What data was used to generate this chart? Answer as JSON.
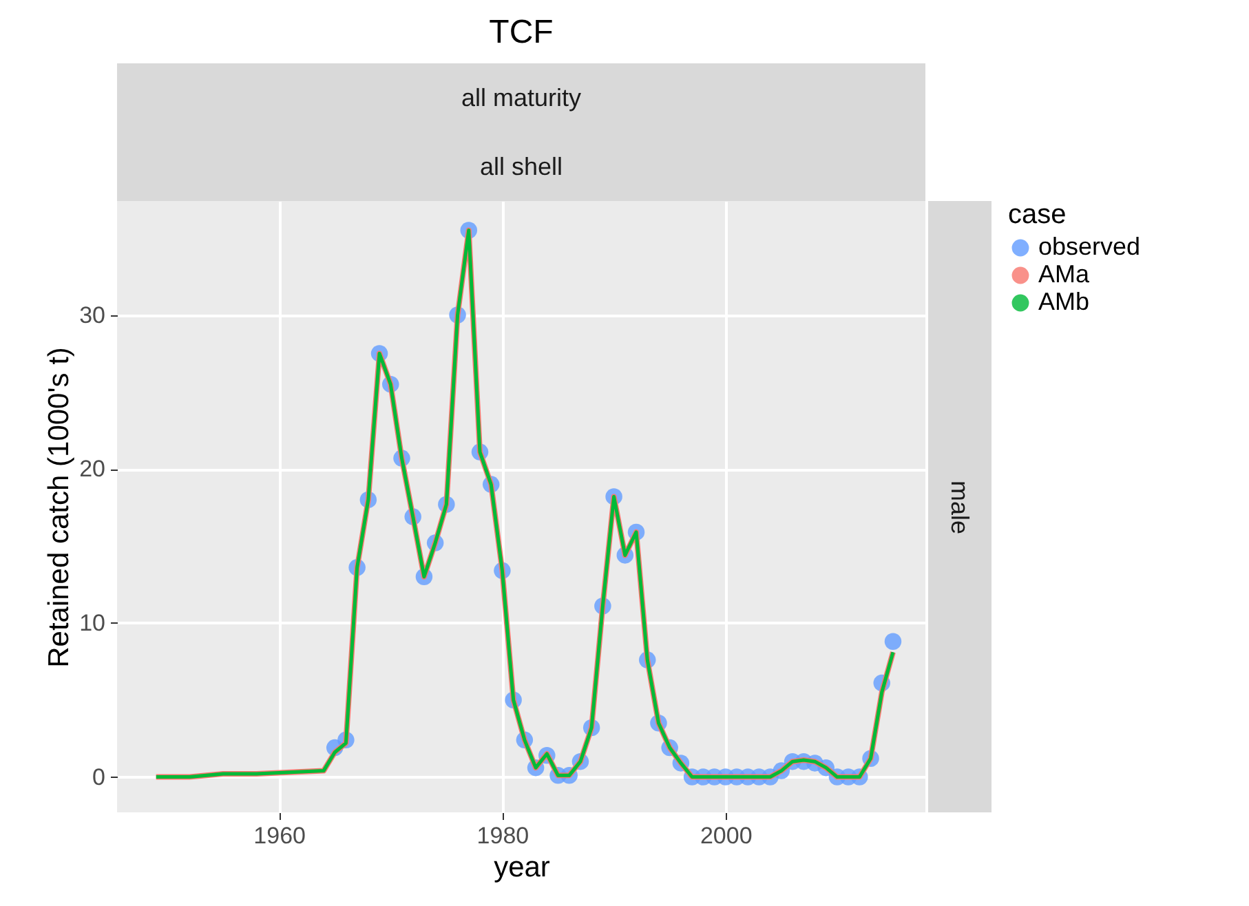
{
  "chart_data": {
    "type": "line",
    "title": "TCF",
    "xlabel": "year",
    "ylabel": "Retained catch (1000's t)",
    "legend_title": "case",
    "annotations": [
      "all maturity",
      "all shell",
      "male"
    ],
    "series": [
      {
        "name": "observed",
        "type": "scatter",
        "color": "#619cff",
        "marker": "circle",
        "x": [
          1965,
          1966,
          1967,
          1968,
          1969,
          1970,
          1971,
          1972,
          1973,
          1974,
          1975,
          1976,
          1977,
          1978,
          1979,
          1980,
          1981,
          1982,
          1983,
          1984,
          1985,
          1986,
          1987,
          1988,
          1989,
          1990,
          1991,
          1992,
          1993,
          1994,
          1995,
          1996,
          1997,
          1998,
          1999,
          2000,
          2001,
          2002,
          2003,
          2004,
          2005,
          2006,
          2007,
          2008,
          2009,
          2010,
          2011,
          2012,
          2013,
          2014,
          2015
        ],
        "values": [
          1.9,
          2.4,
          13.6,
          18.0,
          27.5,
          25.5,
          20.7,
          16.9,
          13.0,
          15.2,
          17.7,
          30.0,
          35.5,
          21.1,
          19.0,
          13.4,
          5.0,
          2.4,
          0.6,
          1.4,
          0.1,
          0.1,
          1.0,
          3.2,
          11.1,
          18.2,
          14.4,
          15.9,
          7.6,
          3.5,
          1.9,
          0.9,
          0,
          0,
          0,
          0,
          0,
          0,
          0,
          0,
          0.4,
          1.0,
          1.0,
          0.9,
          0.6,
          0,
          0,
          0,
          1.2,
          6.1,
          8.8
        ]
      },
      {
        "name": "AMa",
        "color": "#f8766d",
        "x": [
          1949,
          1952,
          1955,
          1958,
          1961,
          1964,
          1965,
          1966,
          1967,
          1968,
          1969,
          1970,
          1971,
          1972,
          1973,
          1974,
          1975,
          1976,
          1977,
          1978,
          1979,
          1980,
          1981,
          1982,
          1983,
          1984,
          1985,
          1986,
          1987,
          1988,
          1989,
          1990,
          1991,
          1992,
          1993,
          1994,
          1995,
          1996,
          1997,
          1998,
          1999,
          2000,
          2001,
          2002,
          2003,
          2004,
          2005,
          2006,
          2007,
          2008,
          2009,
          2010,
          2011,
          2012,
          2013,
          2014,
          2015
        ],
        "values": [
          0,
          0,
          0.2,
          0.2,
          0.3,
          0.4,
          1.6,
          2.2,
          13.6,
          18.0,
          27.5,
          25.5,
          20.7,
          16.9,
          13.0,
          15.2,
          17.7,
          30.0,
          35.5,
          21.1,
          19.0,
          13.4,
          5.0,
          2.4,
          0.6,
          1.5,
          0.1,
          0.1,
          1.0,
          3.2,
          11.1,
          18.2,
          14.4,
          15.9,
          7.6,
          3.5,
          1.9,
          0.9,
          0,
          0,
          0,
          0,
          0,
          0,
          0,
          0,
          0.4,
          1.0,
          1.1,
          1.0,
          0.6,
          0,
          0,
          0,
          1.2,
          5.5,
          8.1
        ]
      },
      {
        "name": "AMb",
        "color": "#00ba38",
        "x": [
          1949,
          1952,
          1955,
          1958,
          1961,
          1964,
          1965,
          1966,
          1967,
          1968,
          1969,
          1970,
          1971,
          1972,
          1973,
          1974,
          1975,
          1976,
          1977,
          1978,
          1979,
          1980,
          1981,
          1982,
          1983,
          1984,
          1985,
          1986,
          1987,
          1988,
          1989,
          1990,
          1991,
          1992,
          1993,
          1994,
          1995,
          1996,
          1997,
          1998,
          1999,
          2000,
          2001,
          2002,
          2003,
          2004,
          2005,
          2006,
          2007,
          2008,
          2009,
          2010,
          2011,
          2012,
          2013,
          2014,
          2015
        ],
        "values": [
          0,
          0,
          0.2,
          0.2,
          0.3,
          0.4,
          1.6,
          2.2,
          13.6,
          18.0,
          27.5,
          25.5,
          20.7,
          16.9,
          13.0,
          15.2,
          17.7,
          30.0,
          35.5,
          21.1,
          19.0,
          13.4,
          5.0,
          2.4,
          0.6,
          1.5,
          0.1,
          0.1,
          1.0,
          3.2,
          11.1,
          18.2,
          14.4,
          15.9,
          7.6,
          3.5,
          1.9,
          0.9,
          0,
          0,
          0,
          0,
          0,
          0,
          0,
          0,
          0.4,
          1.0,
          1.1,
          1.0,
          0.6,
          0,
          0,
          0,
          1.2,
          5.5,
          8.1
        ]
      }
    ],
    "xlim": [
      1945.5,
      2017.9
    ],
    "xticks": [
      1960,
      1980,
      2000
    ],
    "ylim": [
      -2.3,
      37.4
    ],
    "yticks": [
      0,
      10,
      20,
      30
    ],
    "grid": true,
    "legend": "right",
    "line_style": "solid"
  }
}
